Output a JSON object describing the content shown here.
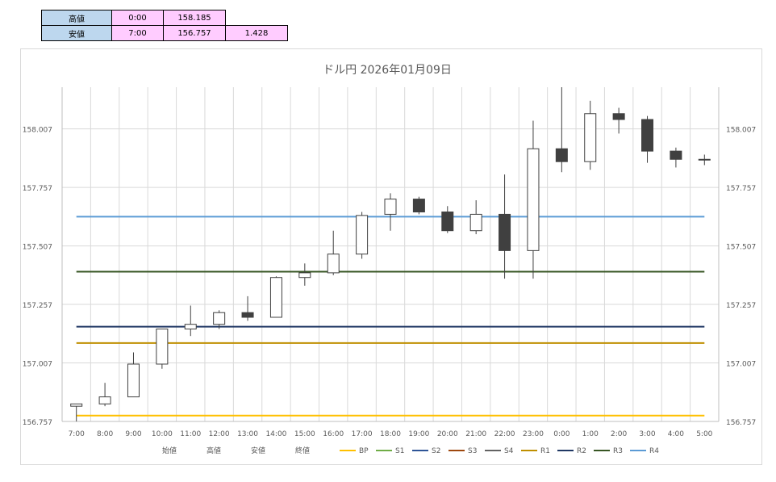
{
  "stats": {
    "high": {
      "label": "高値",
      "time": "0:00",
      "value": "158.185"
    },
    "low": {
      "label": "安値",
      "time": "7:00",
      "value": "156.757",
      "range": "1.428"
    }
  },
  "chart_data": {
    "type": "candlestick",
    "title": "ドル円  2026年01月09日",
    "xlabel": "",
    "ylabel": "",
    "ylim": [
      156.757,
      158.185
    ],
    "yticks": [
      "156.757",
      "157.007",
      "157.257",
      "157.507",
      "157.757",
      "158.007"
    ],
    "grid": true,
    "legend_position": "bottom",
    "categories": [
      "7:00",
      "8:00",
      "9:00",
      "10:00",
      "11:00",
      "12:00",
      "13:00",
      "14:00",
      "15:00",
      "16:00",
      "17:00",
      "18:00",
      "19:00",
      "20:00",
      "21:00",
      "22:00",
      "23:00",
      "0:00",
      "1:00",
      "2:00",
      "3:00",
      "4:00",
      "5:00"
    ],
    "candles": [
      {
        "open": 156.822,
        "high": 156.832,
        "low": 156.757,
        "close": 156.832
      },
      {
        "open": 156.832,
        "high": 156.922,
        "low": 156.822,
        "close": 156.862
      },
      {
        "open": 156.862,
        "high": 157.052,
        "low": 156.862,
        "close": 157.002
      },
      {
        "open": 157.002,
        "high": 157.152,
        "low": 156.982,
        "close": 157.152
      },
      {
        "open": 157.152,
        "high": 157.252,
        "low": 157.122,
        "close": 157.172
      },
      {
        "open": 157.172,
        "high": 157.232,
        "low": 157.152,
        "close": 157.222
      },
      {
        "open": 157.222,
        "high": 157.292,
        "low": 157.187,
        "close": 157.202
      },
      {
        "open": 157.202,
        "high": 157.377,
        "low": 157.202,
        "close": 157.372
      },
      {
        "open": 157.372,
        "high": 157.432,
        "low": 157.337,
        "close": 157.392
      },
      {
        "open": 157.392,
        "high": 157.572,
        "low": 157.382,
        "close": 157.472
      },
      {
        "open": 157.472,
        "high": 157.652,
        "low": 157.452,
        "close": 157.637
      },
      {
        "open": 157.642,
        "high": 157.732,
        "low": 157.572,
        "close": 157.707
      },
      {
        "open": 157.707,
        "high": 157.717,
        "low": 157.642,
        "close": 157.652
      },
      {
        "open": 157.652,
        "high": 157.677,
        "low": 157.562,
        "close": 157.572
      },
      {
        "open": 157.572,
        "high": 157.702,
        "low": 157.557,
        "close": 157.642
      },
      {
        "open": 157.642,
        "high": 157.812,
        "low": 157.367,
        "close": 157.487
      },
      {
        "open": 157.487,
        "high": 158.042,
        "low": 157.367,
        "close": 157.922
      },
      {
        "open": 157.922,
        "high": 158.185,
        "low": 157.822,
        "close": 157.867
      },
      {
        "open": 157.867,
        "high": 158.127,
        "low": 157.832,
        "close": 158.072
      },
      {
        "open": 158.072,
        "high": 158.097,
        "low": 157.987,
        "close": 158.047
      },
      {
        "open": 158.047,
        "high": 158.062,
        "low": 157.862,
        "close": 157.912
      },
      {
        "open": 157.912,
        "high": 157.927,
        "low": 157.842,
        "close": 157.877
      },
      {
        "open": 157.877,
        "high": 157.897,
        "low": 157.852,
        "close": 157.877
      }
    ],
    "levels": [
      {
        "name": "BP",
        "value": 156.782,
        "color": "#ffc000"
      },
      {
        "name": "R2",
        "value": 157.162,
        "color": "#203864"
      },
      {
        "name": "R1",
        "value": 157.092,
        "color": "#bf8f00"
      },
      {
        "name": "R3",
        "value": 157.397,
        "color": "#375623"
      },
      {
        "name": "R4",
        "value": 157.632,
        "color": "#5b9bd5"
      }
    ],
    "legend": [
      {
        "name": "始値",
        "color": "none"
      },
      {
        "name": "高値",
        "color": "none"
      },
      {
        "name": "安値",
        "color": "none"
      },
      {
        "name": "終値",
        "color": "none"
      },
      {
        "name": "BP",
        "color": "#ffc000"
      },
      {
        "name": "S1",
        "color": "#70ad47"
      },
      {
        "name": "S2",
        "color": "#2e5597"
      },
      {
        "name": "S3",
        "color": "#9e480e"
      },
      {
        "name": "S4",
        "color": "#636363"
      },
      {
        "name": "R1",
        "color": "#bf8f00"
      },
      {
        "name": "R2",
        "color": "#203864"
      },
      {
        "name": "R3",
        "color": "#375623"
      },
      {
        "name": "R4",
        "color": "#5b9bd5"
      }
    ],
    "colors": {
      "up_fill": "#ffffff",
      "down_fill": "#404040",
      "outline": "#404040",
      "grid": "#d9d9d9"
    }
  }
}
